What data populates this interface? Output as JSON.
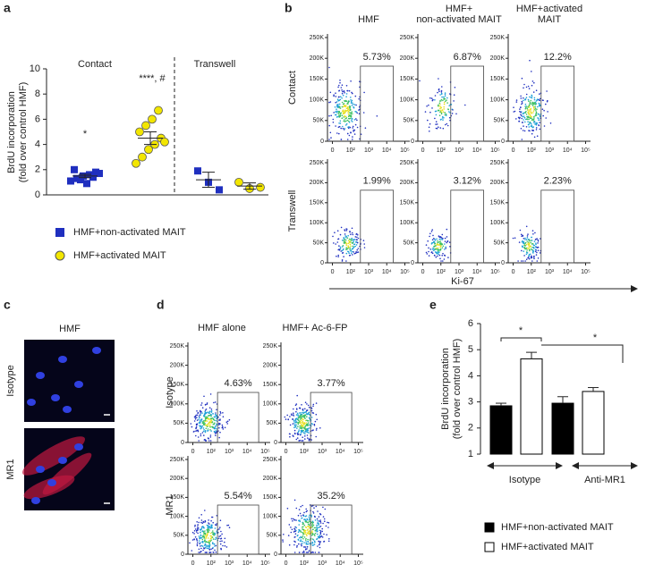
{
  "chart_data": [
    {
      "type": "strip",
      "panel_label": "a",
      "y_label": [
        "BrdU incorporation",
        "(fold over control HMF)"
      ],
      "groups": [
        "Contact",
        "Transwell"
      ],
      "annotations": [
        "*",
        "****, #"
      ],
      "ylim": [
        0,
        10
      ],
      "yticks": [
        0,
        2,
        4,
        6,
        8,
        10
      ],
      "series": [
        {
          "name": "HMF+non-activated MAIT",
          "color": "#1f2fbf",
          "marker": "square",
          "values": [
            [
              1.1,
              1.3,
              1.5,
              1.6,
              1.8,
              2.0,
              1.2,
              0.9,
              1.4,
              1.7
            ],
            [
              1.9,
              1.0,
              0.4
            ]
          ],
          "means": [
            1.5,
            1.2
          ],
          "sems": [
            0.13,
            0.6
          ]
        },
        {
          "name": "HMF+activated MAIT",
          "color": "#f2e600",
          "marker": "circle",
          "values": [
            [
              2.5,
              3.0,
              3.6,
              4.0,
              4.5,
              5.0,
              5.5,
              6.0,
              6.7,
              4.2
            ],
            [
              1.0,
              0.5,
              0.6
            ]
          ],
          "means": [
            4.5,
            0.7
          ],
          "sems": [
            0.5,
            0.25
          ]
        }
      ]
    },
    {
      "type": "bar",
      "panel_label": "e",
      "y_label": [
        "BrdU incorporation",
        "(fold over control HMF)"
      ],
      "categories": [
        "Isotype",
        "Anti-MR1"
      ],
      "significance": [
        "*",
        "*"
      ],
      "ylim": [
        1,
        6
      ],
      "yticks": [
        1,
        2,
        3,
        4,
        5,
        6
      ],
      "series": [
        {
          "name": "HMF+non-activated MAIT",
          "color": "#000000",
          "values": [
            2.85,
            2.95
          ],
          "errors": [
            0.1,
            0.25
          ]
        },
        {
          "name": "HMF+activated MAIT",
          "color": "#ffffff",
          "values": [
            4.65,
            3.4
          ],
          "errors": [
            0.25,
            0.15
          ]
        }
      ]
    }
  ],
  "flow_axes": {
    "yticks": [
      "0",
      "50K",
      "100K",
      "150K",
      "200K",
      "250K"
    ],
    "xticks": [
      "0",
      "10²",
      "10³",
      "10⁴",
      "10⁵"
    ]
  },
  "panel_b": {
    "label": "b",
    "columns": [
      [
        "HMF"
      ],
      [
        "HMF+",
        "non-activated MAIT"
      ],
      [
        "HMF+activated",
        "MAIT"
      ]
    ],
    "rows": [
      "Contact",
      "Transwell"
    ],
    "gates": [
      [
        "5.73%",
        "6.87%",
        "12.2%"
      ],
      [
        "1.99%",
        "3.12%",
        "2.23%"
      ]
    ],
    "x_label": "Ki-67"
  },
  "panel_c": {
    "label": "c",
    "title": "HMF",
    "rows": [
      "Isotype",
      "MR1"
    ]
  },
  "panel_d": {
    "label": "d",
    "columns": [
      "HMF alone",
      "HMF+ Ac-6-FP"
    ],
    "rows": [
      "Isotype",
      "MR1"
    ],
    "gates": [
      [
        "4.63%",
        "3.77%"
      ],
      [
        "5.54%",
        "35.2%"
      ]
    ]
  }
}
